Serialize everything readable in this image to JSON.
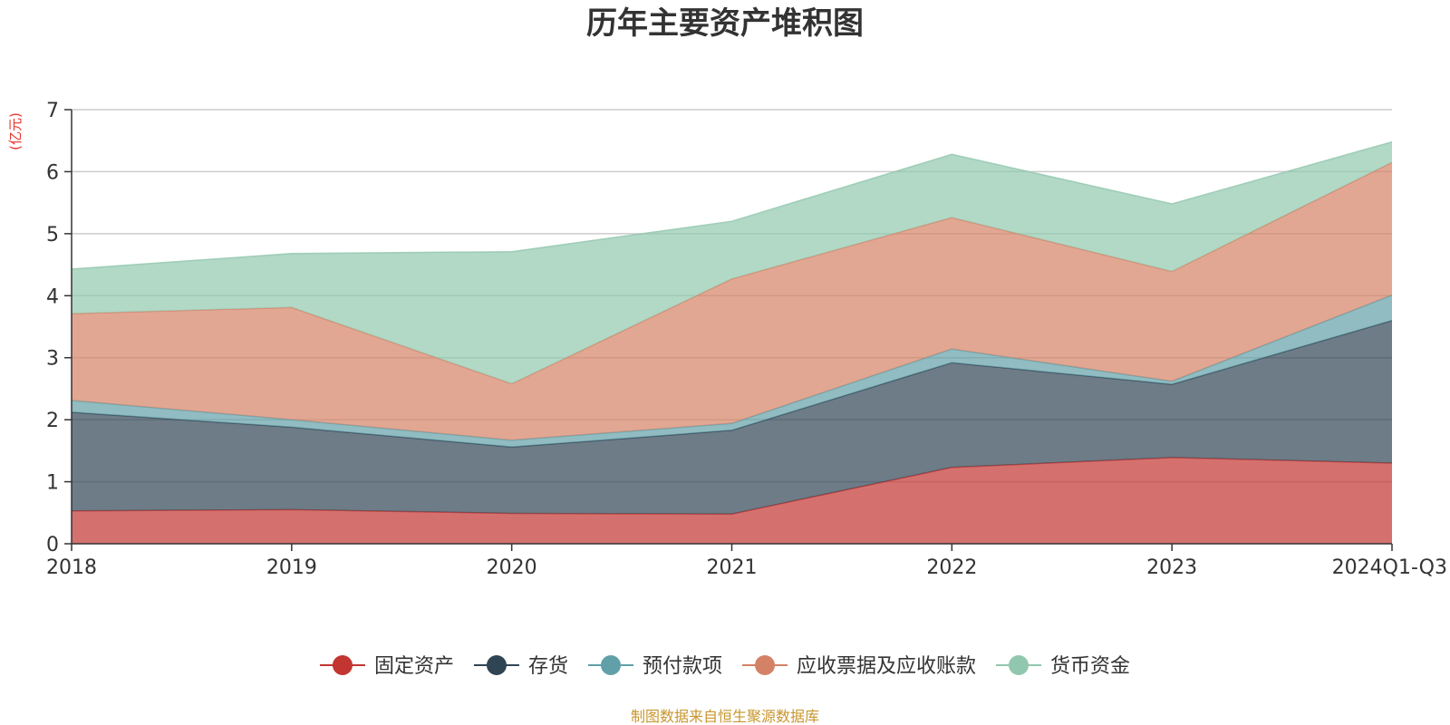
{
  "chart_data": {
    "type": "area",
    "stacked": true,
    "title": "历年主要资产堆积图",
    "unit": "(亿元)",
    "x": [
      "2018",
      "2019",
      "2020",
      "2021",
      "2022",
      "2023",
      "2024Q1-Q3"
    ],
    "ylim": [
      0,
      7
    ],
    "yticks": [
      "0",
      "1",
      "2",
      "3",
      "4",
      "5",
      "6",
      "7"
    ],
    "grid": true,
    "legend_position": "bottom",
    "series": [
      {
        "name": "固定资产",
        "color": "#c23531",
        "values": [
          0.53,
          0.55,
          0.49,
          0.48,
          1.23,
          1.39,
          1.3
        ]
      },
      {
        "name": "存货",
        "color": "#2f4554",
        "values": [
          1.59,
          1.33,
          1.07,
          1.35,
          1.69,
          1.18,
          2.3
        ]
      },
      {
        "name": "预付款项",
        "color": "#61a0a8",
        "values": [
          0.19,
          0.12,
          0.11,
          0.11,
          0.22,
          0.05,
          0.41
        ]
      },
      {
        "name": "应收票据及应收账款",
        "color": "#d48265",
        "values": [
          1.4,
          1.81,
          0.91,
          2.33,
          2.12,
          1.77,
          2.14
        ]
      },
      {
        "name": "货币资金",
        "color": "#91c7ae",
        "values": [
          0.72,
          0.87,
          2.13,
          0.93,
          1.02,
          1.09,
          0.33
        ]
      }
    ]
  },
  "source": "制图数据来自恒生聚源数据库"
}
